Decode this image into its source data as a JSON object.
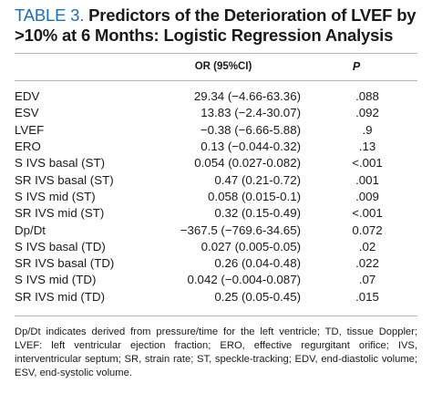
{
  "title": {
    "label": "TABLE 3.",
    "text": "Predictors of the Deterioration of LVEF by >10% at 6 Months: Logistic Regression Analysis"
  },
  "table": {
    "headers": {
      "name": "",
      "or": "OR (95%CI)",
      "p": "P"
    },
    "rows": [
      {
        "name": "EDV",
        "or": "29.34 (−4.66-63.36)",
        "p": ".088"
      },
      {
        "name": "ESV",
        "or": "13.83 (−2.4-30.07)",
        "p": ".092"
      },
      {
        "name": "LVEF",
        "or": "−0.38 (−6.66-5.88)",
        "p": ".9"
      },
      {
        "name": "ERO",
        "or": "0.13 (−0.044-0.32)",
        "p": ".13"
      },
      {
        "name": "S IVS basal (ST)",
        "or": "0.054 (0.027-0.082)",
        "p": "<.001"
      },
      {
        "name": "SR IVS basal (ST)",
        "or": "0.47 (0.21-0.72)",
        "p": ".001"
      },
      {
        "name": "S IVS mid (ST)",
        "or": "0.058 (0.015-0.1)",
        "p": ".009"
      },
      {
        "name": "SR IVS mid (ST)",
        "or": "0.32 (0.15-0.49)",
        "p": "<.001"
      },
      {
        "name": "Dp/Dt",
        "or": "−367.5 (−769.6-34.65)",
        "p": "0.072"
      },
      {
        "name": "S IVS basal (TD)",
        "or": "0.027 (0.005-0.05)",
        "p": ".02"
      },
      {
        "name": "SR IVS basal (TD)",
        "or": "0.26 (0.04-0.48)",
        "p": ".022"
      },
      {
        "name": "S IVS mid (TD)",
        "or": "0.042 (−0.004-0.087)",
        "p": ".07"
      },
      {
        "name": "SR IVS mid (TD)",
        "or": "0.25 (0.05-0.45)",
        "p": ".015"
      }
    ]
  },
  "footnote": "Dp/Dt indicates derived from pressure/time for the left ventricle; TD, tissue Doppler; LVEF: left ventricular ejection fraction; ERO, effective regurgitant orifice; IVS, interventricular septum; SR, strain rate; ST, speckle-tracking; EDV, end-diastolic volume; ESV, end-systolic volume.",
  "colors": {
    "label": "#1e6fb3",
    "rule": "#b5b5b5",
    "text": "#1a1a1a"
  }
}
